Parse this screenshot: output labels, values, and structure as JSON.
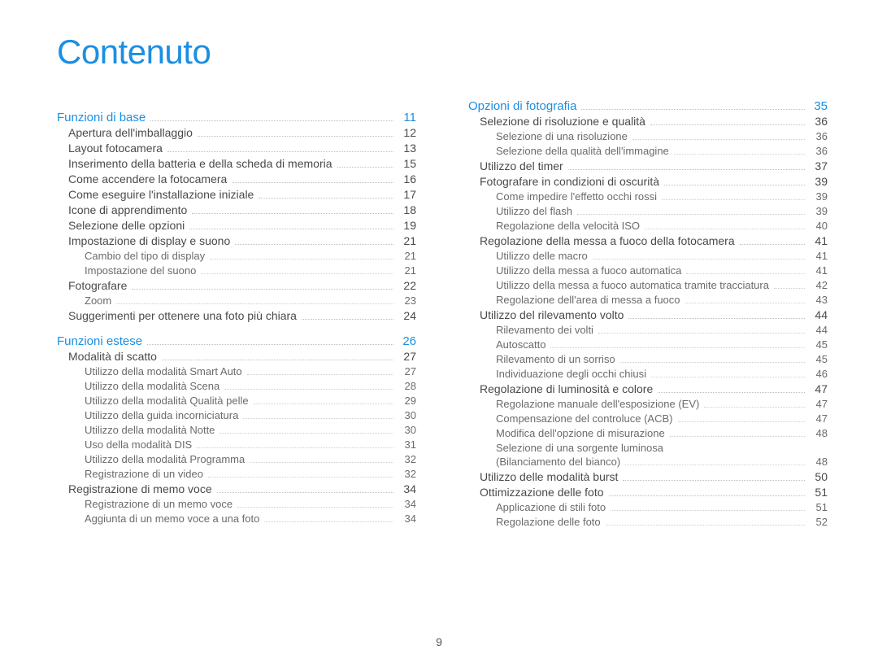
{
  "title": "Contenuto",
  "page_number": "9",
  "colors": {
    "accent": "#1a8fe3",
    "body_text": "#4a4a4a",
    "sub_text": "#6b6b6b",
    "dots": "#bfbfbf",
    "background": "#ffffff"
  },
  "typography": {
    "title_fontsize": 42,
    "section_fontsize": 15,
    "l1_fontsize": 14,
    "l2_fontsize": 13,
    "font_family": "Arial"
  },
  "left_column": [
    {
      "level": 0,
      "label": "Funzioni di base",
      "page": "11"
    },
    {
      "level": 1,
      "label": "Apertura dell'imballaggio",
      "page": "12"
    },
    {
      "level": 1,
      "label": "Layout fotocamera",
      "page": "13"
    },
    {
      "level": 1,
      "label": "Inserimento della batteria e della scheda di memoria",
      "page": "15",
      "short_dots": true
    },
    {
      "level": 1,
      "label": "Come accendere la fotocamera",
      "page": "16"
    },
    {
      "level": 1,
      "label": "Come eseguire l'installazione iniziale",
      "page": "17"
    },
    {
      "level": 1,
      "label": "Icone di apprendimento",
      "page": "18"
    },
    {
      "level": 1,
      "label": "Selezione delle opzioni",
      "page": "19"
    },
    {
      "level": 1,
      "label": "Impostazione di display e suono",
      "page": "21"
    },
    {
      "level": 2,
      "label": "Cambio del tipo di display",
      "page": "21"
    },
    {
      "level": 2,
      "label": "Impostazione del suono",
      "page": "21"
    },
    {
      "level": 1,
      "label": "Fotografare",
      "page": "22"
    },
    {
      "level": 2,
      "label": "Zoom",
      "page": "23"
    },
    {
      "level": 1,
      "label": "Suggerimenti per ottenere una foto più chiara",
      "page": "24"
    },
    {
      "level": 0,
      "label": "Funzioni estese",
      "page": "26"
    },
    {
      "level": 1,
      "label": "Modalità di scatto",
      "page": "27"
    },
    {
      "level": 2,
      "label": "Utilizzo della modalità Smart Auto",
      "page": "27"
    },
    {
      "level": 2,
      "label": "Utilizzo della modalità Scena",
      "page": "28"
    },
    {
      "level": 2,
      "label": "Utilizzo della modalità Qualità pelle",
      "page": "29"
    },
    {
      "level": 2,
      "label": "Utilizzo della guida incorniciatura",
      "page": "30"
    },
    {
      "level": 2,
      "label": "Utilizzo della modalità Notte",
      "page": "30"
    },
    {
      "level": 2,
      "label": "Uso della modalità DIS",
      "page": "31"
    },
    {
      "level": 2,
      "label": "Utilizzo della modalità Programma",
      "page": "32"
    },
    {
      "level": 2,
      "label": "Registrazione di un video",
      "page": "32"
    },
    {
      "level": 1,
      "label": "Registrazione di memo voce",
      "page": "34"
    },
    {
      "level": 2,
      "label": "Registrazione di un memo voce",
      "page": "34"
    },
    {
      "level": 2,
      "label": "Aggiunta di un memo voce a una foto",
      "page": "34"
    }
  ],
  "right_column": [
    {
      "level": 0,
      "label": "Opzioni di fotografia",
      "page": "35",
      "no_top_margin": true
    },
    {
      "level": 1,
      "label": "Selezione di risoluzione e qualità",
      "page": "36"
    },
    {
      "level": 2,
      "label": "Selezione di una risoluzione",
      "page": "36"
    },
    {
      "level": 2,
      "label": "Selezione della qualità dell'immagine",
      "page": "36"
    },
    {
      "level": 1,
      "label": "Utilizzo del timer",
      "page": "37"
    },
    {
      "level": 1,
      "label": "Fotografare in condizioni di oscurità",
      "page": "39"
    },
    {
      "level": 2,
      "label": "Come impedire l'effetto occhi rossi",
      "page": "39"
    },
    {
      "level": 2,
      "label": "Utilizzo del flash",
      "page": "39"
    },
    {
      "level": 2,
      "label": "Regolazione della velocità ISO",
      "page": "40"
    },
    {
      "level": 1,
      "label": "Regolazione della messa a fuoco della fotocamera",
      "page": "41",
      "short_dots": true
    },
    {
      "level": 2,
      "label": "Utilizzo delle macro",
      "page": "41"
    },
    {
      "level": 2,
      "label": "Utilizzo della messa a fuoco automatica",
      "page": "41"
    },
    {
      "level": 2,
      "label": "Utilizzo della messa a fuoco automatica tramite tracciatura",
      "page": "42",
      "short_dots": true
    },
    {
      "level": 2,
      "label": "Regolazione dell'area di messa a fuoco",
      "page": "43"
    },
    {
      "level": 1,
      "label": "Utilizzo del rilevamento volto",
      "page": "44"
    },
    {
      "level": 2,
      "label": "Rilevamento dei volti",
      "page": "44"
    },
    {
      "level": 2,
      "label": "Autoscatto",
      "page": "45"
    },
    {
      "level": 2,
      "label": "Rilevamento di un sorriso",
      "page": "45"
    },
    {
      "level": 2,
      "label": "Individuazione degli occhi chiusi",
      "page": "46"
    },
    {
      "level": 1,
      "label": "Regolazione di luminosità e colore",
      "page": "47"
    },
    {
      "level": 2,
      "label": "Regolazione manuale dell'esposizione (EV)",
      "page": "47"
    },
    {
      "level": 2,
      "label": "Compensazione del controluce (ACB)",
      "page": "47"
    },
    {
      "level": 2,
      "label": "Modifica dell'opzione di misurazione",
      "page": "48"
    },
    {
      "level": 2,
      "label": "Selezione di una sorgente luminosa",
      "label2": "(Bilanciamento del bianco)",
      "page": "48",
      "two_line": true
    },
    {
      "level": 1,
      "label": "Utilizzo delle modalità burst",
      "page": "50"
    },
    {
      "level": 1,
      "label": "Ottimizzazione delle foto",
      "page": "51"
    },
    {
      "level": 2,
      "label": "Applicazione di stili foto",
      "page": "51"
    },
    {
      "level": 2,
      "label": "Regolazione delle foto",
      "page": "52"
    }
  ]
}
